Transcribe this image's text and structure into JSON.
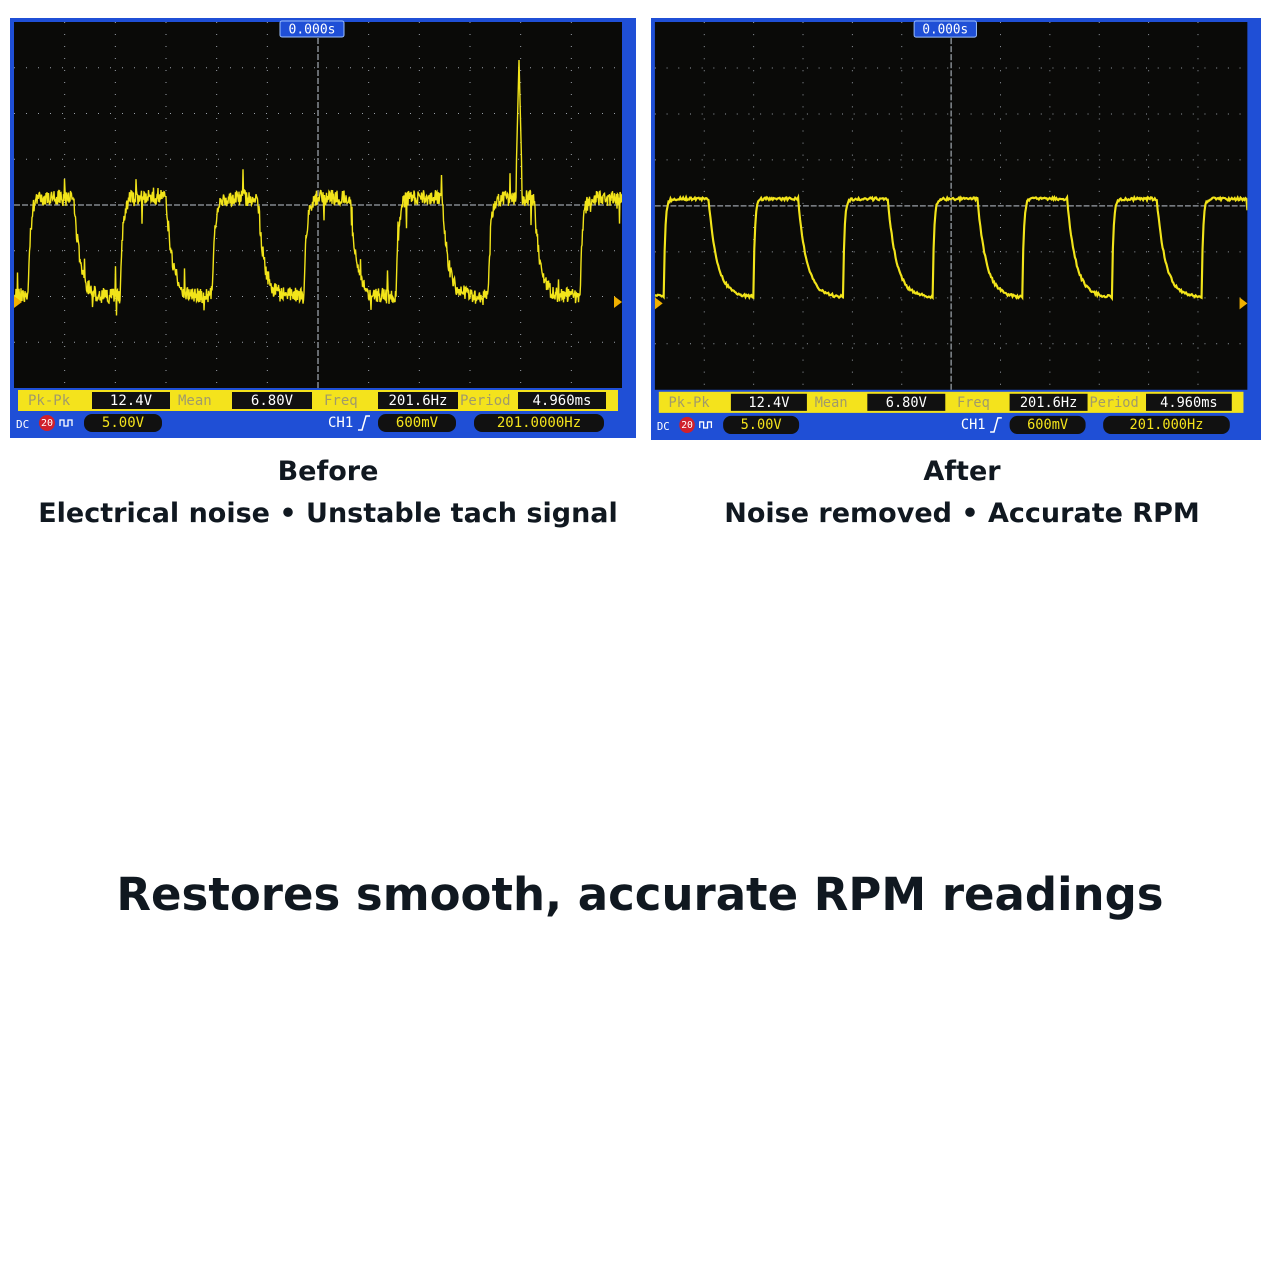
{
  "panels": [
    {
      "time_label": "0.000s",
      "measurements": [
        {
          "label": "Pk-Pk",
          "value": "12.4V"
        },
        {
          "label": "Mean",
          "value": "6.80V"
        },
        {
          "label": "Freq",
          "value": "201.6Hz"
        },
        {
          "label": "Period",
          "value": "4.960ms"
        }
      ],
      "status": {
        "coupling": "DC",
        "bandwidth": "20",
        "scale": "5.00V",
        "channel": "CH1",
        "trigger_level": "600mV",
        "counter": "201.0000Hz"
      },
      "caption_title": "Before",
      "caption_text": "Electrical noise • Unstable tach signal"
    },
    {
      "time_label": "0.000s",
      "measurements": [
        {
          "label": "Pk-Pk",
          "value": "12.4V"
        },
        {
          "label": "Mean",
          "value": "6.80V"
        },
        {
          "label": "Freq",
          "value": "201.6Hz"
        },
        {
          "label": "Period",
          "value": "4.960ms"
        }
      ],
      "status": {
        "coupling": "DC",
        "bandwidth": "20",
        "scale": "5.00V",
        "channel": "CH1",
        "trigger_level": "600mV",
        "counter": "201.000Hz"
      },
      "caption_title": "After",
      "caption_text": "Noise removed • Accurate RPM"
    }
  ],
  "headline": "Restores smooth, accurate RPM readings"
}
